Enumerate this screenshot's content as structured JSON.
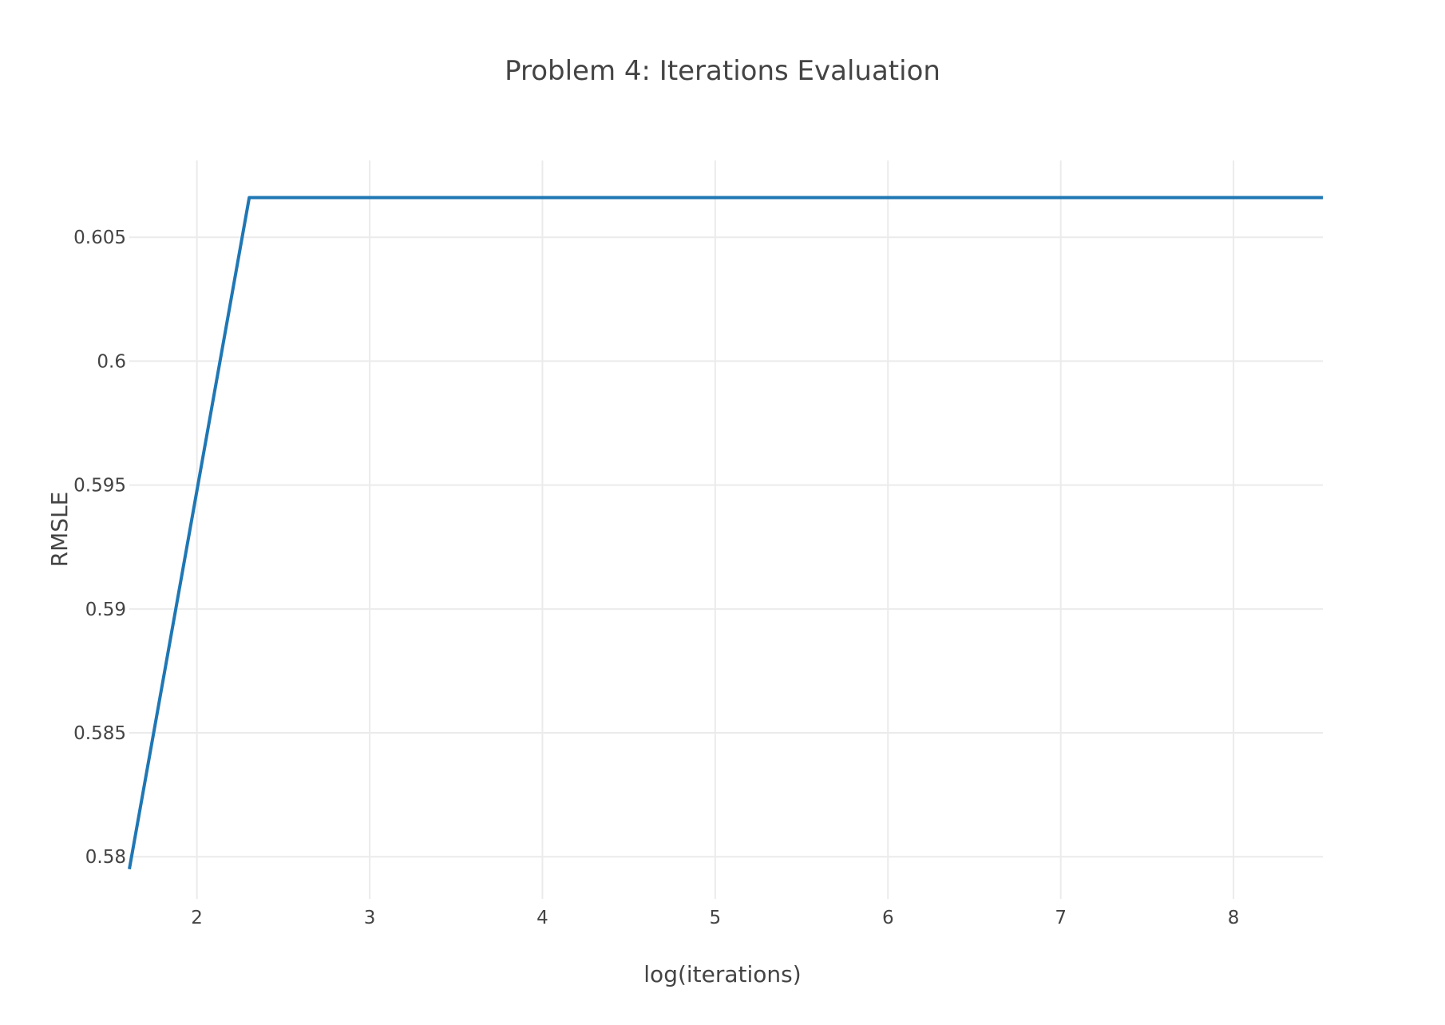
{
  "chart_data": {
    "type": "line",
    "title": "Problem 4: Iterations Evaluation",
    "xlabel": "log(iterations)",
    "ylabel": "RMSLE",
    "xlim": [
      1.609,
      8.517
    ],
    "ylim": [
      0.5783,
      0.6081
    ],
    "x_ticks": [
      2,
      3,
      4,
      5,
      6,
      7,
      8
    ],
    "x_tick_labels": [
      "2",
      "3",
      "4",
      "5",
      "6",
      "7",
      "8"
    ],
    "y_ticks": [
      0.58,
      0.585,
      0.59,
      0.595,
      0.6,
      0.605
    ],
    "y_tick_labels": [
      "0.58",
      "0.585",
      "0.59",
      "0.595",
      "0.6",
      "0.605"
    ],
    "grid": true,
    "legend": "none",
    "series": [
      {
        "color": "#1f77b4",
        "x": [
          1.609,
          2.303,
          2.996,
          3.912,
          4.605,
          5.298,
          6.215,
          6.908,
          7.601,
          8.517
        ],
        "y": [
          0.5795,
          0.6066,
          0.6066,
          0.6066,
          0.6066,
          0.6066,
          0.6066,
          0.6066,
          0.6066,
          0.6066
        ]
      }
    ]
  }
}
